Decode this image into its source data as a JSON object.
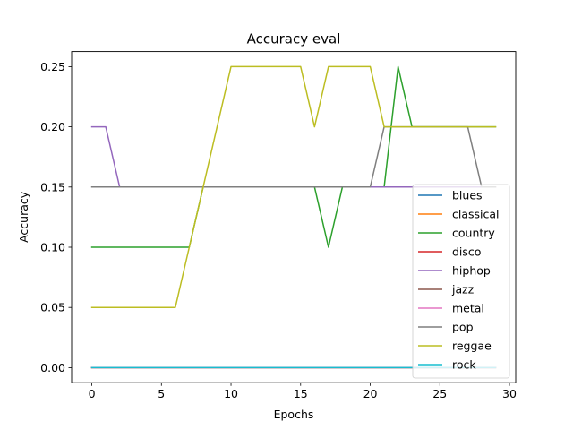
{
  "chart_data": {
    "type": "line",
    "title": "Accuracy eval",
    "xlabel": "Epochs",
    "ylabel": "Accuracy",
    "xlim": [
      -1.45,
      30.45
    ],
    "ylim": [
      -0.0125,
      0.2625
    ],
    "xticks": [
      0,
      5,
      10,
      15,
      20,
      25,
      30
    ],
    "yticks": [
      0.0,
      0.05,
      0.1,
      0.15,
      0.2,
      0.25
    ],
    "ytick_labels": [
      "0.00",
      "0.05",
      "0.10",
      "0.15",
      "0.20",
      "0.25"
    ],
    "grid": false,
    "legend_position": "lower-right",
    "x": [
      0,
      1,
      2,
      3,
      4,
      5,
      6,
      7,
      8,
      9,
      10,
      11,
      12,
      13,
      14,
      15,
      16,
      17,
      18,
      19,
      20,
      21,
      22,
      23,
      24,
      25,
      26,
      27,
      28,
      29
    ],
    "series": [
      {
        "name": "blues",
        "color": "#1f77b4",
        "values": [
          0,
          0,
          0,
          0,
          0,
          0,
          0,
          0,
          0,
          0,
          0,
          0,
          0,
          0,
          0,
          0,
          0,
          0,
          0,
          0,
          0,
          0,
          0,
          0,
          0,
          0,
          0,
          0,
          0,
          0
        ]
      },
      {
        "name": "classical",
        "color": "#ff7f0e",
        "values": [
          0,
          0,
          0,
          0,
          0,
          0,
          0,
          0,
          0,
          0,
          0,
          0,
          0,
          0,
          0,
          0,
          0,
          0,
          0,
          0,
          0,
          0,
          0,
          0,
          0,
          0,
          0,
          0,
          0,
          0
        ]
      },
      {
        "name": "country",
        "color": "#2ca02c",
        "values": [
          0.1,
          0.1,
          0.1,
          0.1,
          0.1,
          0.1,
          0.1,
          0.1,
          0.15,
          0.15,
          0.15,
          0.15,
          0.15,
          0.15,
          0.15,
          0.15,
          0.15,
          0.1,
          0.15,
          0.15,
          0.15,
          0.15,
          0.25,
          0.2,
          0.2,
          0.2,
          0.2,
          0.2,
          0.2,
          0.2
        ]
      },
      {
        "name": "disco",
        "color": "#d62728",
        "values": [
          0,
          0,
          0,
          0,
          0,
          0,
          0,
          0,
          0,
          0,
          0,
          0,
          0,
          0,
          0,
          0,
          0,
          0,
          0,
          0,
          0,
          0,
          0,
          0,
          0,
          0,
          0,
          0,
          0,
          0
        ]
      },
      {
        "name": "hiphop",
        "color": "#9467bd",
        "values": [
          0.2,
          0.2,
          0.15,
          0.15,
          0.15,
          0.15,
          0.15,
          0.15,
          0.15,
          0.15,
          0.15,
          0.15,
          0.15,
          0.15,
          0.15,
          0.15,
          0.15,
          0.15,
          0.15,
          0.15,
          0.15,
          0.15,
          0.15,
          0.15,
          0.15,
          0.15,
          0.15,
          0.15,
          0.15,
          0.15
        ]
      },
      {
        "name": "jazz",
        "color": "#8c564b",
        "values": [
          0,
          0,
          0,
          0,
          0,
          0,
          0,
          0,
          0,
          0,
          0,
          0,
          0,
          0,
          0,
          0,
          0,
          0,
          0,
          0,
          0,
          0,
          0,
          0,
          0,
          0,
          0,
          0,
          0,
          0
        ]
      },
      {
        "name": "metal",
        "color": "#e377c2",
        "values": [
          0,
          0,
          0,
          0,
          0,
          0,
          0,
          0,
          0,
          0,
          0,
          0,
          0,
          0,
          0,
          0,
          0,
          0,
          0,
          0,
          0,
          0,
          0,
          0,
          0,
          0,
          0,
          0,
          0,
          0
        ]
      },
      {
        "name": "pop",
        "color": "#7f7f7f",
        "values": [
          0.15,
          0.15,
          0.15,
          0.15,
          0.15,
          0.15,
          0.15,
          0.15,
          0.15,
          0.15,
          0.15,
          0.15,
          0.15,
          0.15,
          0.15,
          0.15,
          0.15,
          0.15,
          0.15,
          0.15,
          0.15,
          0.2,
          0.2,
          0.2,
          0.2,
          0.2,
          0.2,
          0.2,
          0.15,
          0.15
        ]
      },
      {
        "name": "reggae",
        "color": "#bcbd22",
        "values": [
          0.05,
          0.05,
          0.05,
          0.05,
          0.05,
          0.05,
          0.05,
          0.1,
          0.15,
          0.2,
          0.25,
          0.25,
          0.25,
          0.25,
          0.25,
          0.25,
          0.2,
          0.25,
          0.25,
          0.25,
          0.25,
          0.2,
          0.2,
          0.2,
          0.2,
          0.2,
          0.2,
          0.2,
          0.2,
          0.2
        ]
      },
      {
        "name": "rock",
        "color": "#17becf",
        "values": [
          0,
          0,
          0,
          0,
          0,
          0,
          0,
          0,
          0,
          0,
          0,
          0,
          0,
          0,
          0,
          0,
          0,
          0,
          0,
          0,
          0,
          0,
          0,
          0,
          0,
          0,
          0,
          0,
          0,
          0
        ]
      }
    ]
  }
}
